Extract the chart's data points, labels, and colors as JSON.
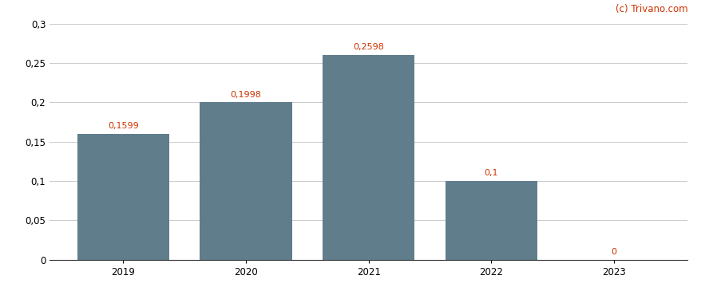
{
  "categories": [
    "2019",
    "2020",
    "2021",
    "2022",
    "2023"
  ],
  "values": [
    0.1599,
    0.1998,
    0.2598,
    0.1,
    0.0
  ],
  "bar_color": "#607d8b",
  "bar_labels": [
    "0,1599",
    "0,1998",
    "0,2598",
    "0,1",
    "0"
  ],
  "ylim": [
    0,
    0.3
  ],
  "yticks": [
    0,
    0.05,
    0.1,
    0.15,
    0.2,
    0.25,
    0.3
  ],
  "ytick_labels": [
    "0",
    "0,05",
    "0,1",
    "0,15",
    "0,2",
    "0,25",
    "0,3"
  ],
  "label_color": "#cc3300",
  "watermark": "(c) Trivano.com",
  "watermark_color": "#cc3300",
  "background_color": "#ffffff",
  "grid_color": "#cccccc",
  "bar_width": 0.75,
  "label_fontsize": 8.0,
  "tick_fontsize": 8.5
}
